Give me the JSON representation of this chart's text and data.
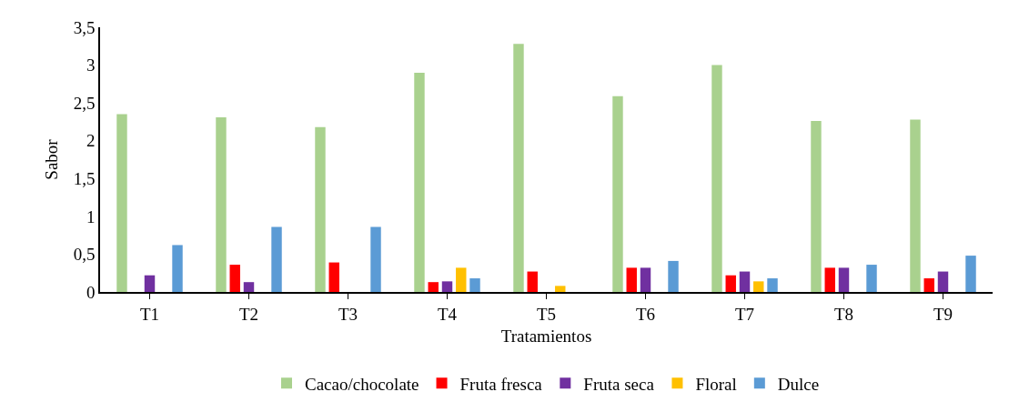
{
  "chart_data": {
    "type": "bar",
    "xlabel": "Tratamientos",
    "ylabel": "Sabor",
    "categories": [
      "T1",
      "T2",
      "T3",
      "T4",
      "T5",
      "T6",
      "T7",
      "T8",
      "T9"
    ],
    "series": [
      {
        "name": "Cacao/chocolate",
        "color": "#a9d18e",
        "values": [
          2.35,
          2.31,
          2.18,
          2.9,
          3.28,
          2.59,
          3.0,
          2.26,
          2.28
        ]
      },
      {
        "name": "Fruta fresca",
        "color": "#ff0000",
        "values": [
          null,
          0.36,
          0.39,
          0.13,
          0.27,
          0.32,
          0.22,
          0.32,
          0.18
        ]
      },
      {
        "name": "Fruta seca",
        "color": "#7030a0",
        "values": [
          0.22,
          0.13,
          null,
          0.14,
          null,
          0.32,
          0.27,
          0.32,
          0.27
        ]
      },
      {
        "name": "Floral",
        "color": "#ffc000",
        "values": [
          null,
          null,
          null,
          0.32,
          0.08,
          null,
          0.14,
          null,
          null
        ]
      },
      {
        "name": "Dulce",
        "color": "#5b9bd5",
        "values": [
          0.62,
          0.86,
          0.86,
          0.18,
          null,
          0.41,
          0.18,
          0.36,
          0.48
        ]
      }
    ],
    "ylim": [
      0,
      3.5
    ],
    "yticks": [
      0,
      {
        "value": 0.5,
        "label": "0,5"
      },
      1,
      {
        "value": 1.5,
        "label": "1,5"
      },
      2,
      {
        "value": 2.5,
        "label": "2,5"
      },
      3,
      {
        "value": 3.5,
        "label": "3,5"
      }
    ],
    "grid": false,
    "legend": "bottom"
  }
}
